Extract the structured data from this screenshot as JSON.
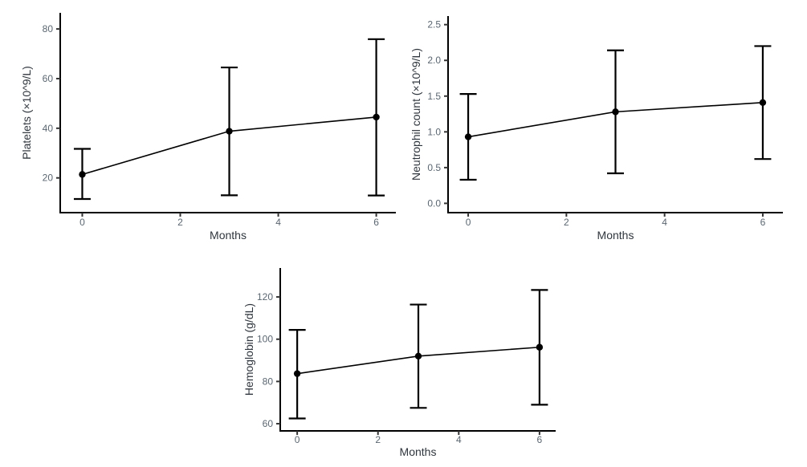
{
  "page": {
    "background_color": "#ffffff",
    "figure_type": "panel-of-three-errorbar-line-charts"
  },
  "styles": {
    "axis_line_color": "#000000",
    "tick_color": "#333333",
    "tick_label_color": "#5b6670",
    "axis_title_color": "#30363d",
    "data_color": "#000000"
  },
  "chart_data": [
    {
      "id": "platelets",
      "type": "line",
      "title": "",
      "xlabel": "Months",
      "ylabel": "Platelets (×10^9/L)",
      "x": [
        0,
        3,
        6
      ],
      "series": [
        {
          "name": "mean",
          "values": [
            21.4,
            38.8,
            44.5
          ]
        }
      ],
      "error_low": [
        11.5,
        13.0,
        12.9
      ],
      "error_high": [
        31.7,
        64.5,
        75.9
      ],
      "xticks": [
        0,
        2,
        4,
        6
      ],
      "yticks": [
        20,
        40,
        60,
        80
      ],
      "xlim": [
        -0.45,
        6.4
      ],
      "ylim": [
        6,
        86.5
      ],
      "grid": false,
      "legend": "none"
    },
    {
      "id": "neutrophil",
      "type": "line",
      "title": "",
      "xlabel": "Months",
      "ylabel": "Neutrophil count (×10^9/L)",
      "x": [
        0,
        3,
        6
      ],
      "series": [
        {
          "name": "mean",
          "values": [
            0.93,
            1.28,
            1.41
          ]
        }
      ],
      "error_low": [
        0.33,
        0.42,
        0.62
      ],
      "error_high": [
        1.53,
        2.14,
        2.2
      ],
      "xticks": [
        0,
        2,
        4,
        6
      ],
      "yticks": [
        0.0,
        0.5,
        1.0,
        1.5,
        2.0,
        2.5
      ],
      "ytick_decimals": 1,
      "xlim": [
        -0.41,
        6.41
      ],
      "ylim": [
        -0.13,
        2.62
      ],
      "grid": false,
      "legend": "none"
    },
    {
      "id": "hemoglobin",
      "type": "line",
      "title": "",
      "xlabel": "Months",
      "ylabel": "Hemoglobin (g/dL)",
      "x": [
        0,
        3,
        6
      ],
      "series": [
        {
          "name": "mean",
          "values": [
            83.7,
            92.0,
            96.2
          ]
        }
      ],
      "error_low": [
        62.5,
        67.5,
        69.0
      ],
      "error_high": [
        104.4,
        116.4,
        123.3
      ],
      "xticks": [
        0,
        2,
        4,
        6
      ],
      "yticks": [
        60,
        80,
        100,
        120
      ],
      "xlim": [
        -0.42,
        6.4
      ],
      "ylim": [
        56.6,
        133.7
      ],
      "grid": false,
      "legend": "none"
    }
  ]
}
